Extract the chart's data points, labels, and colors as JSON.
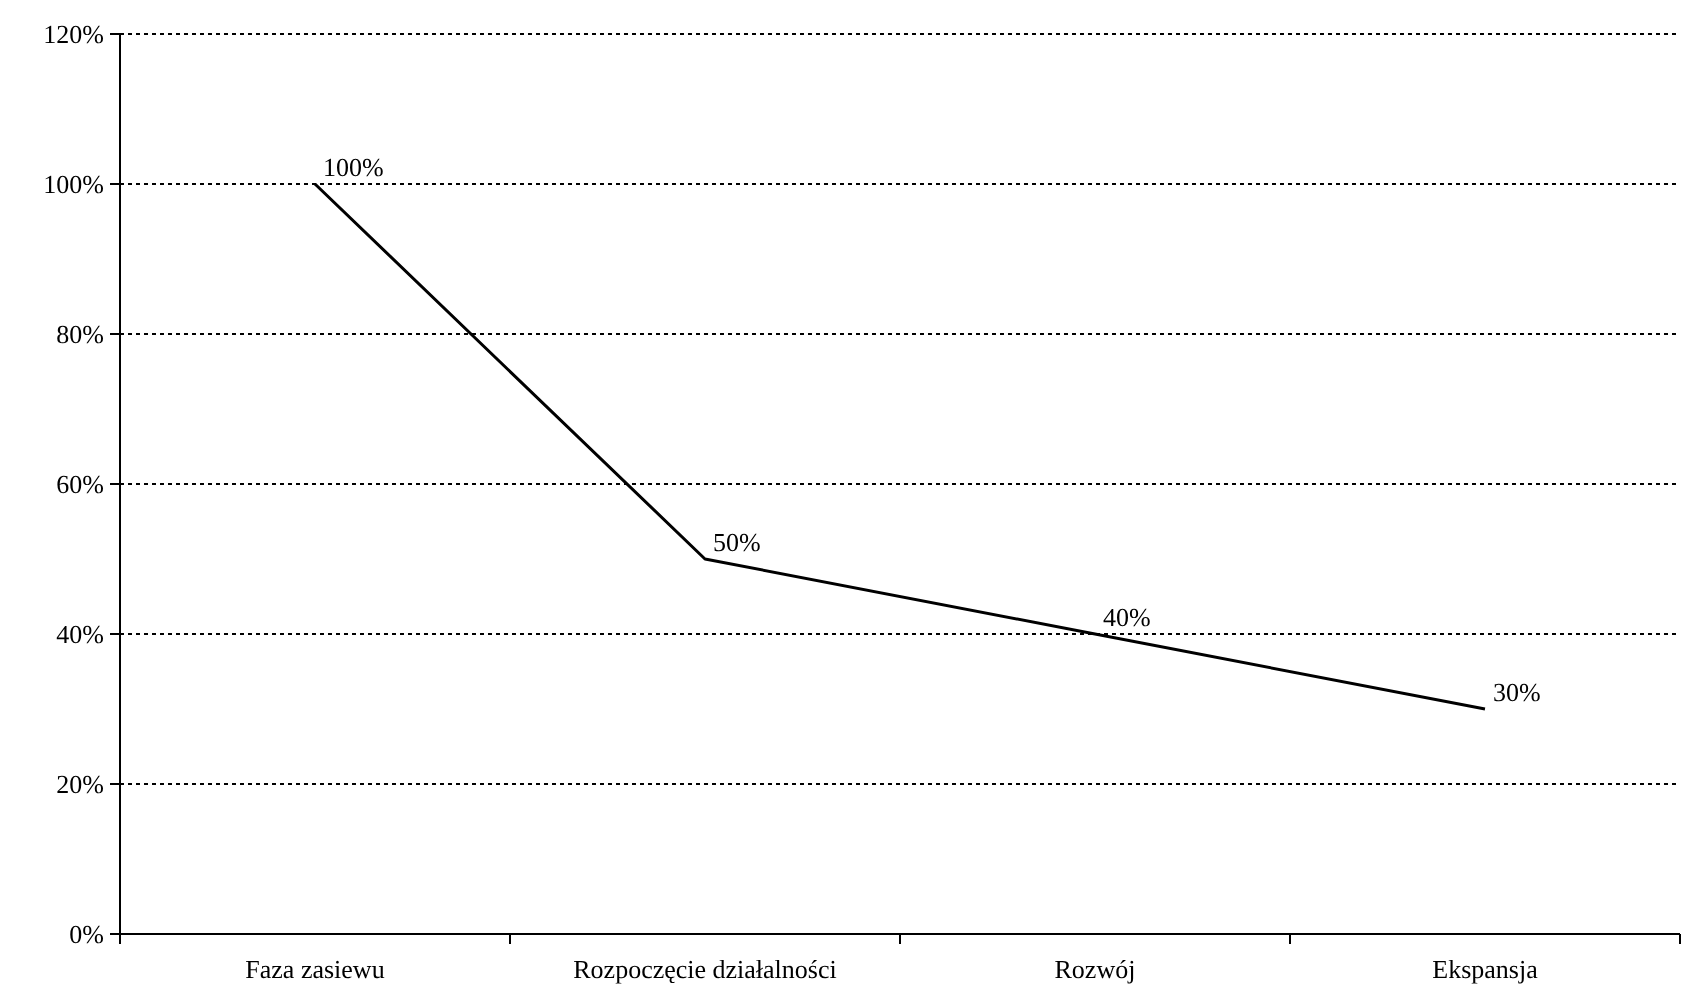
{
  "chart_data": {
    "type": "line",
    "categories": [
      "Faza zasiewu",
      "Rozpoczęcie działalności",
      "Rozwój",
      "Ekspansja"
    ],
    "series": [
      {
        "color": "#000000",
        "values": [
          100,
          50,
          40,
          30
        ],
        "value_labels": [
          "100%",
          "50%",
          "40%",
          "30%"
        ]
      }
    ],
    "ylim": [
      0,
      120
    ],
    "yticks": [
      {
        "value": 0,
        "label": "0%"
      },
      {
        "value": 20,
        "label": "20%"
      },
      {
        "value": 40,
        "label": "40%"
      },
      {
        "value": 60,
        "label": "60%"
      },
      {
        "value": 80,
        "label": "80%"
      },
      {
        "value": 100,
        "label": "100%"
      },
      {
        "value": 120,
        "label": "120%"
      }
    ],
    "grid": "y",
    "marker": "none",
    "line_style": "solid"
  }
}
